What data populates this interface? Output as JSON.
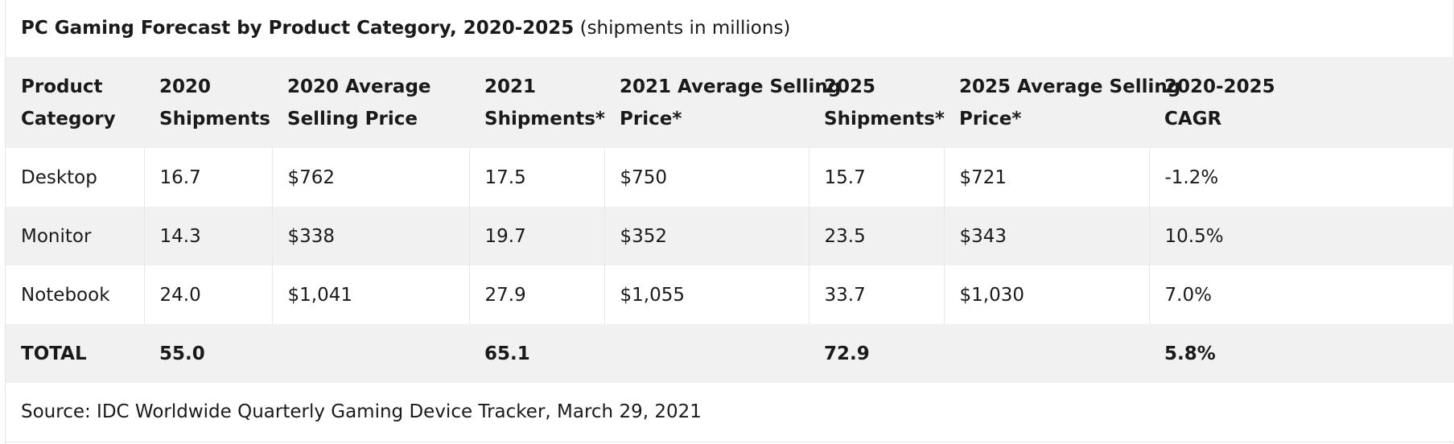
{
  "caption": {
    "title": "PC Gaming Forecast by Product Category, 2020-2025",
    "subtitle": "(shipments in millions)"
  },
  "table": {
    "headers": [
      {
        "line1": "Product",
        "line2": "Category"
      },
      {
        "line1": "2020",
        "line2": "Shipments"
      },
      {
        "line1": "2020 Average",
        "line2": "Selling Price"
      },
      {
        "line1": "2021",
        "line2": "Shipments*"
      },
      {
        "line1": "2021 Average Selling",
        "line2": "Price*"
      },
      {
        "line1": "2025",
        "line2": "Shipments*"
      },
      {
        "line1": "2025 Average Selling",
        "line2": "Price*"
      },
      {
        "line1": "2020-2025",
        "line2": "CAGR"
      }
    ],
    "rows": [
      [
        "Desktop",
        "16.7",
        "$762",
        "17.5",
        "$750",
        "15.7",
        "$721",
        "-1.2%"
      ],
      [
        "Monitor",
        "14.3",
        "$338",
        "19.7",
        "$352",
        "23.5",
        "$343",
        "10.5%"
      ],
      [
        "Notebook",
        "24.0",
        "$1,041",
        "27.9",
        "$1,055",
        "33.7",
        "$1,030",
        "7.0%"
      ]
    ],
    "total": [
      "TOTAL",
      "55.0",
      "",
      "65.1",
      "",
      "72.9",
      "",
      "5.8%"
    ],
    "source": "Source: IDC Worldwide Quarterly Gaming Device Tracker, March 29, 2021"
  }
}
